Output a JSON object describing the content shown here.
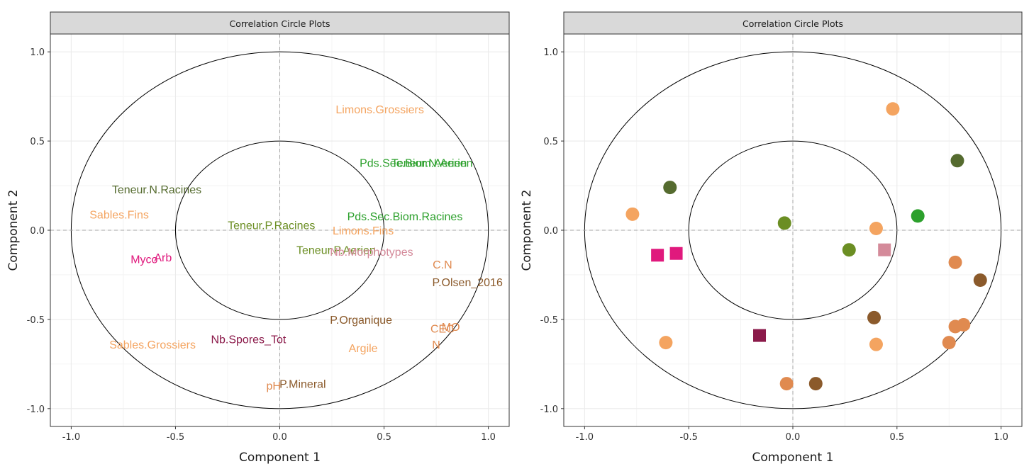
{
  "figure": {
    "panels": [
      "left",
      "right"
    ]
  },
  "chart_data": [
    {
      "type": "scatter",
      "title": "Correlation Circle Plots",
      "xlabel": "Component 1",
      "ylabel": "Component 2",
      "xlim": [
        -1.1,
        1.1
      ],
      "ylim": [
        -1.1,
        1.1
      ],
      "xticks": [
        "-1.0",
        "-0.5",
        "0.0",
        "0.5",
        "1.0"
      ],
      "yticks": [
        "-1.0",
        "-0.5",
        "0.0",
        "0.5",
        "1.0"
      ],
      "circles": [
        1.0,
        0.5
      ],
      "grid": true,
      "marker": "text",
      "points": [
        {
          "label": "Limons.Grossiers",
          "x": 0.48,
          "y": 0.68,
          "color": "#F4A460"
        },
        {
          "label": "Pds.Sec.Biom.Aerien",
          "x": 0.64,
          "y": 0.38,
          "color": "#2CA02C"
        },
        {
          "label": "Teneur.N.Aerien",
          "x": 0.73,
          "y": 0.38,
          "color": "#2CA02C"
        },
        {
          "label": "Teneur.N.Racines",
          "x": -0.59,
          "y": 0.23,
          "color": "#556B2F"
        },
        {
          "label": "Sables.Fins",
          "x": -0.77,
          "y": 0.09,
          "color": "#F4A460"
        },
        {
          "label": "Teneur.P.Racines",
          "x": -0.04,
          "y": 0.03,
          "color": "#6B8E23"
        },
        {
          "label": "Limons.Fins",
          "x": 0.4,
          "y": 0.0,
          "color": "#F4A460"
        },
        {
          "label": "Pds.Sec.Biom.Racines",
          "x": 0.6,
          "y": 0.08,
          "color": "#2CA02C"
        },
        {
          "label": "Teneur.P.Aerien",
          "x": 0.27,
          "y": -0.11,
          "color": "#6B8E23"
        },
        {
          "label": "Nb.Morphotypes",
          "x": 0.44,
          "y": -0.12,
          "color": "#D48A9A"
        },
        {
          "label": "Myco",
          "x": -0.65,
          "y": -0.16,
          "color": "#E0197D"
        },
        {
          "label": "Arb",
          "x": -0.56,
          "y": -0.15,
          "color": "#E0197D"
        },
        {
          "label": "C.N",
          "x": 0.78,
          "y": -0.19,
          "color": "#E08A50"
        },
        {
          "label": "P.Olsen_2016",
          "x": 0.9,
          "y": -0.29,
          "color": "#8B5A2B"
        },
        {
          "label": "P.Organique",
          "x": 0.39,
          "y": -0.5,
          "color": "#8B5A2B"
        },
        {
          "label": "CEC",
          "x": 0.78,
          "y": -0.55,
          "color": "#E08A50"
        },
        {
          "label": "MO",
          "x": 0.82,
          "y": -0.54,
          "color": "#E08A50"
        },
        {
          "label": "N",
          "x": 0.75,
          "y": -0.64,
          "color": "#E08A50"
        },
        {
          "label": "Nb.Spores_Tot",
          "x": -0.15,
          "y": -0.61,
          "color": "#8B1A4A"
        },
        {
          "label": "Sables.Grossiers",
          "x": -0.61,
          "y": -0.64,
          "color": "#F4A460"
        },
        {
          "label": "Argile",
          "x": 0.4,
          "y": -0.66,
          "color": "#F4A460"
        },
        {
          "label": "pH",
          "x": -0.03,
          "y": -0.87,
          "color": "#E08A50"
        },
        {
          "label": "P.Mineral",
          "x": 0.11,
          "y": -0.86,
          "color": "#8B5A2B"
        }
      ]
    },
    {
      "type": "scatter",
      "title": "Correlation Circle Plots",
      "xlabel": "Component 1",
      "ylabel": "Component 2",
      "xlim": [
        -1.1,
        1.1
      ],
      "ylim": [
        -1.1,
        1.1
      ],
      "xticks": [
        "-1.0",
        "-0.5",
        "0.0",
        "0.5",
        "1.0"
      ],
      "yticks": [
        "-1.0",
        "-0.5",
        "0.0",
        "0.5",
        "1.0"
      ],
      "circles": [
        1.0,
        0.5
      ],
      "grid": true,
      "marker": "symbol",
      "points": [
        {
          "x": 0.48,
          "y": 0.68,
          "color": "#F4A460",
          "shape": "circle"
        },
        {
          "x": 0.79,
          "y": 0.39,
          "color": "#556B2F",
          "shape": "circle"
        },
        {
          "x": -0.59,
          "y": 0.24,
          "color": "#556B2F",
          "shape": "circle"
        },
        {
          "x": -0.77,
          "y": 0.09,
          "color": "#F4A460",
          "shape": "circle"
        },
        {
          "x": -0.04,
          "y": 0.04,
          "color": "#6B8E23",
          "shape": "circle"
        },
        {
          "x": 0.6,
          "y": 0.08,
          "color": "#2CA02C",
          "shape": "circle"
        },
        {
          "x": 0.4,
          "y": 0.01,
          "color": "#F4A460",
          "shape": "circle"
        },
        {
          "x": 0.27,
          "y": -0.11,
          "color": "#6B8E23",
          "shape": "circle"
        },
        {
          "x": 0.44,
          "y": -0.11,
          "color": "#D48A9A",
          "shape": "square"
        },
        {
          "x": -0.65,
          "y": -0.14,
          "color": "#E0197D",
          "shape": "square"
        },
        {
          "x": -0.56,
          "y": -0.13,
          "color": "#E0197D",
          "shape": "square"
        },
        {
          "x": 0.78,
          "y": -0.18,
          "color": "#E08A50",
          "shape": "circle"
        },
        {
          "x": 0.9,
          "y": -0.28,
          "color": "#8B5A2B",
          "shape": "circle"
        },
        {
          "x": 0.39,
          "y": -0.49,
          "color": "#8B5A2B",
          "shape": "circle"
        },
        {
          "x": 0.78,
          "y": -0.54,
          "color": "#E08A50",
          "shape": "circle"
        },
        {
          "x": 0.82,
          "y": -0.53,
          "color": "#E08A50",
          "shape": "circle"
        },
        {
          "x": 0.75,
          "y": -0.63,
          "color": "#E08A50",
          "shape": "circle"
        },
        {
          "x": -0.16,
          "y": -0.59,
          "color": "#8B1A4A",
          "shape": "square"
        },
        {
          "x": -0.61,
          "y": -0.63,
          "color": "#F4A460",
          "shape": "circle"
        },
        {
          "x": 0.4,
          "y": -0.64,
          "color": "#F4A460",
          "shape": "circle"
        },
        {
          "x": -0.03,
          "y": -0.86,
          "color": "#E08A50",
          "shape": "circle"
        },
        {
          "x": 0.11,
          "y": -0.86,
          "color": "#8B5A2B",
          "shape": "circle"
        }
      ]
    }
  ]
}
